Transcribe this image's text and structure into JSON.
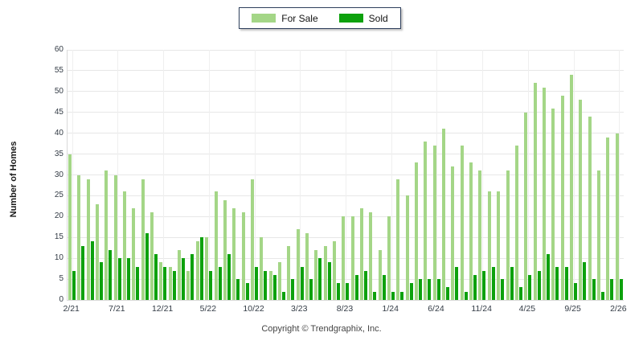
{
  "legend": {
    "for_sale_label": "For Sale",
    "sold_label": "Sold"
  },
  "footer": {
    "copyright": "Copyright © Trendgraphix, Inc."
  },
  "colors": {
    "for_sale": "#a4d687",
    "sold": "#0da10d",
    "gridline": "#e7e7e7",
    "axis_text": "#333b45",
    "legend_border": "#2e3f5c"
  },
  "chart_data": {
    "type": "bar",
    "title": "",
    "xlabel": "",
    "ylabel": "Number of Homes",
    "ylim": [
      0,
      60
    ],
    "ytick_step": 5,
    "grid": true,
    "legend_position": "top-center",
    "x_labeled_every": 5,
    "categories": [
      "2/21",
      "3/21",
      "4/21",
      "5/21",
      "6/21",
      "7/21",
      "8/21",
      "9/21",
      "10/21",
      "11/21",
      "12/21",
      "1/22",
      "2/22",
      "3/22",
      "4/22",
      "5/22",
      "6/22",
      "7/22",
      "8/22",
      "9/22",
      "10/22",
      "11/22",
      "12/22",
      "1/23",
      "2/23",
      "3/23",
      "4/23",
      "5/23",
      "6/23",
      "7/23",
      "8/23",
      "9/23",
      "10/23",
      "11/23",
      "12/23",
      "1/24",
      "2/24",
      "3/24",
      "4/24",
      "5/24",
      "6/24",
      "7/24",
      "8/24",
      "9/24",
      "10/24",
      "11/24",
      "12/24",
      "1/25",
      "2/25",
      "3/25",
      "4/25",
      "5/25",
      "6/25",
      "7/25",
      "8/25",
      "9/25",
      "10/25",
      "11/25",
      "12/25",
      "1/26",
      "2/26"
    ],
    "series": [
      {
        "name": "For Sale",
        "values": [
          35,
          30,
          29,
          23,
          31,
          30,
          26,
          22,
          29,
          21,
          9,
          8,
          12,
          7,
          14,
          15,
          26,
          24,
          22,
          21,
          29,
          15,
          7,
          9,
          13,
          17,
          16,
          12,
          13,
          14,
          20,
          20,
          22,
          21,
          12,
          20,
          29,
          25,
          33,
          38,
          37,
          41,
          32,
          37,
          33,
          31,
          26,
          26,
          31,
          37,
          45,
          52,
          51,
          46,
          49,
          54,
          48,
          44,
          31,
          39,
          40
        ]
      },
      {
        "name": "Sold",
        "values": [
          7,
          13,
          14,
          9,
          12,
          10,
          10,
          8,
          16,
          11,
          8,
          7,
          10,
          11,
          15,
          7,
          8,
          11,
          5,
          4,
          8,
          7,
          6,
          2,
          5,
          8,
          5,
          10,
          9,
          4,
          4,
          6,
          7,
          2,
          6,
          2,
          2,
          4,
          5,
          5,
          5,
          3,
          8,
          2,
          6,
          7,
          8,
          5,
          8,
          3,
          6,
          7,
          11,
          8,
          8,
          4,
          9,
          5,
          2,
          5,
          5
        ]
      }
    ]
  }
}
